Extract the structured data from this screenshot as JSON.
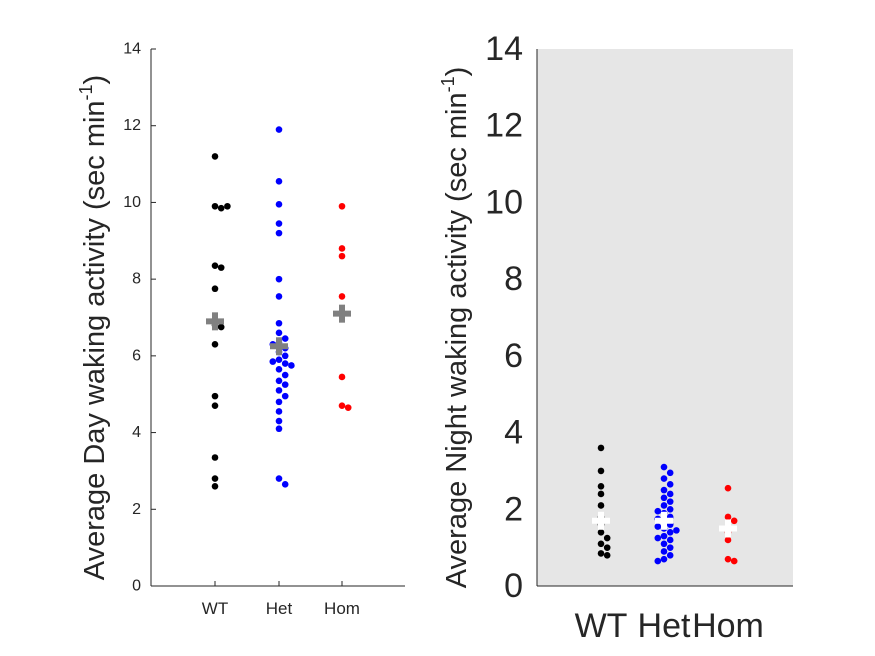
{
  "colors": {
    "WT": "#000000",
    "Het": "#0000ff",
    "Hom": "#ff0000",
    "mean_day": "#808080",
    "mean_night": "#ffffff",
    "night_background": "#e6e6e6",
    "axis": "#262626"
  },
  "chart_data": [
    {
      "type": "scatter",
      "subtype": "beeswarm",
      "title": "",
      "xlabel": "",
      "ylabel": "Average Day waking activity (sec min",
      "ylabel_superscript": "-1",
      "ylabel_close": ")",
      "ylim": [
        0,
        14
      ],
      "yticks": [
        "0",
        "2",
        "4",
        "6",
        "8",
        "10",
        "12",
        "14"
      ],
      "categories": [
        "WT",
        "Het",
        "Hom"
      ],
      "background": "white",
      "grid": false,
      "legend": "none",
      "series": [
        {
          "name": "WT",
          "values": [
            11.2,
            9.9,
            9.9,
            9.85,
            8.35,
            8.3,
            7.75,
            6.8,
            6.75,
            6.3,
            4.95,
            4.7,
            3.35,
            2.8,
            2.6
          ],
          "mean": 6.9
        },
        {
          "name": "Het",
          "values": [
            11.9,
            10.55,
            9.95,
            9.45,
            9.2,
            8.0,
            7.55,
            6.85,
            6.6,
            6.45,
            6.35,
            6.3,
            6.2,
            6.1,
            6.0,
            5.9,
            5.85,
            5.8,
            5.75,
            5.65,
            5.5,
            5.35,
            5.25,
            5.1,
            4.95,
            4.8,
            4.55,
            4.3,
            4.1,
            2.8,
            2.65
          ],
          "mean": 6.25
        },
        {
          "name": "Hom",
          "values": [
            9.9,
            8.8,
            8.6,
            7.55,
            7.1,
            5.45,
            4.7,
            4.65
          ],
          "mean": 7.1
        }
      ]
    },
    {
      "type": "scatter",
      "subtype": "beeswarm",
      "title": "",
      "xlabel": "",
      "ylabel": "Average Night waking activity (sec min",
      "ylabel_superscript": "-1",
      "ylabel_close": ")",
      "ylim": [
        0,
        14
      ],
      "yticks": [
        "0",
        "2",
        "4",
        "6",
        "8",
        "10",
        "12",
        "14"
      ],
      "categories": [
        "WT",
        "Het",
        "Hom"
      ],
      "background": "gray",
      "grid": false,
      "legend": "none",
      "series": [
        {
          "name": "WT",
          "values": [
            3.6,
            3.0,
            2.6,
            2.4,
            2.1,
            1.8,
            1.6,
            1.4,
            1.25,
            1.1,
            1.0,
            0.85,
            0.8
          ],
          "mean": 1.7
        },
        {
          "name": "Het",
          "values": [
            3.1,
            2.95,
            2.8,
            2.65,
            2.5,
            2.4,
            2.3,
            2.2,
            2.1,
            2.0,
            1.95,
            1.9,
            1.8,
            1.75,
            1.7,
            1.6,
            1.55,
            1.5,
            1.45,
            1.4,
            1.3,
            1.25,
            1.2,
            1.1,
            1.0,
            0.9,
            0.8,
            0.7,
            0.65
          ],
          "mean": 1.7
        },
        {
          "name": "Hom",
          "values": [
            2.55,
            1.8,
            1.7,
            1.4,
            1.2,
            0.7,
            0.65
          ],
          "mean": 1.5
        }
      ]
    }
  ]
}
